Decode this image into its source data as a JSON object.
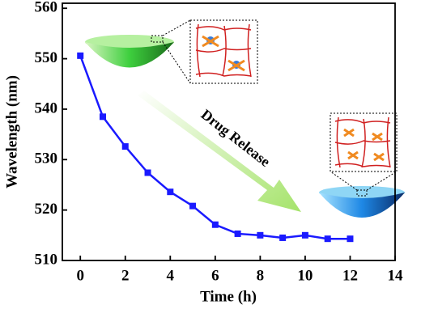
{
  "chart_data": {
    "type": "line",
    "x_label": "Time (h)",
    "y_label": "Wavelength (nm)",
    "annotation": "Drug Release",
    "x": [
      0,
      1,
      2,
      3,
      4,
      5,
      6,
      7,
      8,
      9,
      10,
      11,
      12
    ],
    "values": [
      550.6,
      538.5,
      532.6,
      527.4,
      523.6,
      520.8,
      517.1,
      515.3,
      515.0,
      514.5,
      515.0,
      514.3,
      514.3
    ],
    "color": "#1a1aff",
    "xlim": [
      -0.8,
      14
    ],
    "xticks": [
      0,
      2,
      4,
      6,
      8,
      10,
      12,
      14
    ],
    "ylim": [
      510,
      561
    ],
    "yticks": [
      510,
      520,
      530,
      540,
      550,
      560
    ]
  }
}
